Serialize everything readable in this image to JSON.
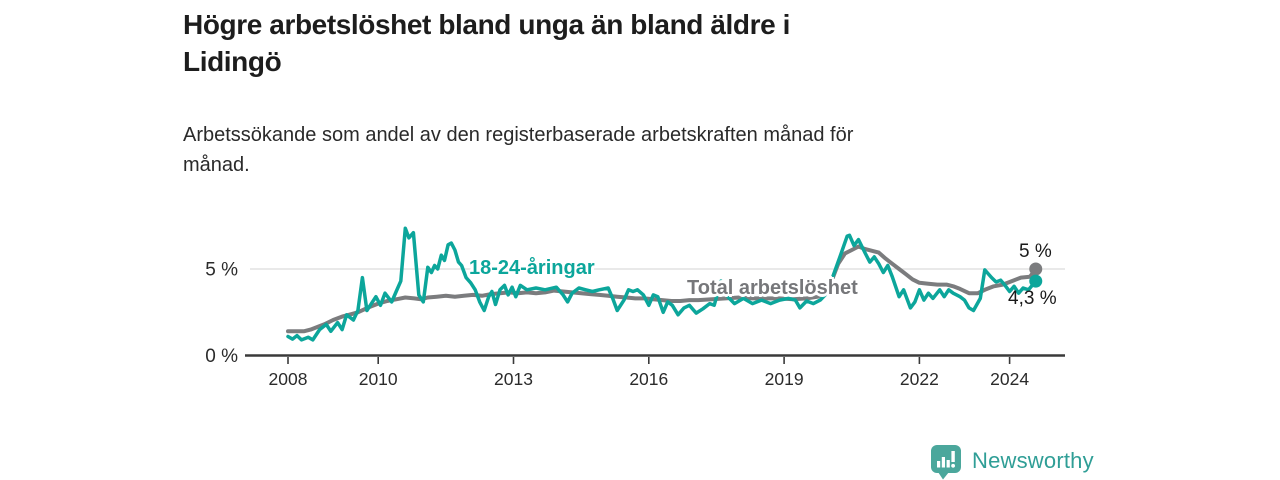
{
  "footer": {
    "brand": "Newsworthy"
  },
  "colors": {
    "accent_teal": "#0ca69b",
    "line_gray": "#7b7c7e",
    "axis": "#3a3a3a",
    "tick_label": "#2b2b2b",
    "grid": "#dcdcdc",
    "logo_teal": "#4ba79c",
    "logo_text_teal": "#2f9e96"
  },
  "chart_data": {
    "type": "line",
    "title": "Högre arbetslöshet bland unga än bland äldre i\nLidingö",
    "subtitle": "Arbetssökande som andel av den registerbaserade arbetskraften månad för\nmånad.",
    "xlabel": "",
    "ylabel": "",
    "unit": "%",
    "grid": "horizontal gridline at 5 % only",
    "legend_position": "inline labels on lines",
    "x_axis": {
      "ticks": [
        2008,
        2010,
        2013,
        2016,
        2019,
        2022,
        2024
      ],
      "range": [
        2007.1,
        2025.4
      ]
    },
    "y_axis": {
      "ticks": [
        {
          "value": 0,
          "label": "0 %"
        },
        {
          "value": 5,
          "label": "5 %"
        }
      ],
      "range": [
        0,
        8.1
      ]
    },
    "series": [
      {
        "name": "Total arbetslöshet",
        "color": "#7b7c7e",
        "end_label": "5 %",
        "end_value": 5.0,
        "points": [
          [
            2008.0,
            1.4
          ],
          [
            2008.2,
            1.4
          ],
          [
            2008.35,
            1.4
          ],
          [
            2008.5,
            1.5
          ],
          [
            2008.65,
            1.65
          ],
          [
            2008.8,
            1.8
          ],
          [
            2009.0,
            2.05
          ],
          [
            2009.2,
            2.25
          ],
          [
            2009.35,
            2.35
          ],
          [
            2009.55,
            2.5
          ],
          [
            2009.8,
            2.8
          ],
          [
            2010.0,
            3.0
          ],
          [
            2010.2,
            3.15
          ],
          [
            2010.4,
            3.25
          ],
          [
            2010.6,
            3.35
          ],
          [
            2010.8,
            3.3
          ],
          [
            2010.95,
            3.25
          ],
          [
            2011.1,
            3.35
          ],
          [
            2011.3,
            3.4
          ],
          [
            2011.5,
            3.45
          ],
          [
            2011.7,
            3.4
          ],
          [
            2011.9,
            3.45
          ],
          [
            2012.1,
            3.5
          ],
          [
            2012.3,
            3.45
          ],
          [
            2012.5,
            3.55
          ],
          [
            2012.7,
            3.6
          ],
          [
            2012.9,
            3.65
          ],
          [
            2013.1,
            3.6
          ],
          [
            2013.3,
            3.65
          ],
          [
            2013.5,
            3.6
          ],
          [
            2013.7,
            3.65
          ],
          [
            2013.9,
            3.75
          ],
          [
            2014.1,
            3.7
          ],
          [
            2014.3,
            3.65
          ],
          [
            2014.5,
            3.6
          ],
          [
            2014.7,
            3.55
          ],
          [
            2014.9,
            3.5
          ],
          [
            2015.1,
            3.45
          ],
          [
            2015.3,
            3.4
          ],
          [
            2015.5,
            3.35
          ],
          [
            2015.7,
            3.3
          ],
          [
            2015.9,
            3.3
          ],
          [
            2016.1,
            3.25
          ],
          [
            2016.3,
            3.2
          ],
          [
            2016.5,
            3.15
          ],
          [
            2016.7,
            3.15
          ],
          [
            2016.9,
            3.2
          ],
          [
            2017.1,
            3.2
          ],
          [
            2017.4,
            3.25
          ],
          [
            2017.7,
            3.3
          ],
          [
            2018.0,
            3.35
          ],
          [
            2018.3,
            3.3
          ],
          [
            2018.6,
            3.3
          ],
          [
            2018.9,
            3.3
          ],
          [
            2019.2,
            3.25
          ],
          [
            2019.5,
            3.3
          ],
          [
            2019.75,
            3.4
          ],
          [
            2019.9,
            3.6
          ],
          [
            2020.05,
            4.3
          ],
          [
            2020.2,
            5.3
          ],
          [
            2020.35,
            5.9
          ],
          [
            2020.5,
            6.1
          ],
          [
            2020.65,
            6.3
          ],
          [
            2020.8,
            6.15
          ],
          [
            2020.95,
            6.05
          ],
          [
            2021.1,
            5.95
          ],
          [
            2021.25,
            5.6
          ],
          [
            2021.4,
            5.3
          ],
          [
            2021.55,
            5.0
          ],
          [
            2021.7,
            4.7
          ],
          [
            2021.85,
            4.4
          ],
          [
            2022.0,
            4.2
          ],
          [
            2022.2,
            4.15
          ],
          [
            2022.4,
            4.1
          ],
          [
            2022.6,
            4.1
          ],
          [
            2022.75,
            4.0
          ],
          [
            2022.9,
            3.85
          ],
          [
            2023.1,
            3.6
          ],
          [
            2023.3,
            3.6
          ],
          [
            2023.45,
            3.8
          ],
          [
            2023.65,
            4.0
          ],
          [
            2023.85,
            4.1
          ],
          [
            2024.05,
            4.3
          ],
          [
            2024.25,
            4.5
          ],
          [
            2024.45,
            4.55
          ],
          [
            2024.58,
            5.0
          ]
        ]
      },
      {
        "name": "18-24-åringar",
        "color": "#0ca69b",
        "end_label": "4,3 %",
        "end_value": 4.3,
        "points": [
          [
            2008.0,
            1.1
          ],
          [
            2008.1,
            0.95
          ],
          [
            2008.2,
            1.15
          ],
          [
            2008.3,
            0.9
          ],
          [
            2008.45,
            1.05
          ],
          [
            2008.55,
            0.9
          ],
          [
            2008.7,
            1.5
          ],
          [
            2008.85,
            1.8
          ],
          [
            2008.95,
            1.4
          ],
          [
            2009.1,
            1.9
          ],
          [
            2009.2,
            1.5
          ],
          [
            2009.3,
            2.35
          ],
          [
            2009.45,
            2.05
          ],
          [
            2009.55,
            2.6
          ],
          [
            2009.65,
            4.5
          ],
          [
            2009.75,
            2.6
          ],
          [
            2009.85,
            3.0
          ],
          [
            2009.95,
            3.4
          ],
          [
            2010.05,
            2.9
          ],
          [
            2010.15,
            3.6
          ],
          [
            2010.3,
            3.1
          ],
          [
            2010.4,
            3.7
          ],
          [
            2010.5,
            4.3
          ],
          [
            2010.6,
            7.35
          ],
          [
            2010.68,
            6.8
          ],
          [
            2010.78,
            7.1
          ],
          [
            2010.9,
            3.5
          ],
          [
            2011.0,
            3.1
          ],
          [
            2011.1,
            5.1
          ],
          [
            2011.18,
            4.8
          ],
          [
            2011.25,
            5.2
          ],
          [
            2011.32,
            5.0
          ],
          [
            2011.4,
            5.8
          ],
          [
            2011.47,
            5.5
          ],
          [
            2011.55,
            6.4
          ],
          [
            2011.62,
            6.5
          ],
          [
            2011.7,
            6.1
          ],
          [
            2011.78,
            5.4
          ],
          [
            2011.85,
            5.2
          ],
          [
            2011.95,
            4.5
          ],
          [
            2012.05,
            4.2
          ],
          [
            2012.15,
            3.8
          ],
          [
            2012.25,
            3.1
          ],
          [
            2012.35,
            2.6
          ],
          [
            2012.45,
            3.4
          ],
          [
            2012.52,
            3.7
          ],
          [
            2012.6,
            2.95
          ],
          [
            2012.7,
            3.8
          ],
          [
            2012.8,
            4.05
          ],
          [
            2012.88,
            3.5
          ],
          [
            2012.97,
            3.95
          ],
          [
            2013.05,
            3.4
          ],
          [
            2013.15,
            4.05
          ],
          [
            2013.3,
            3.8
          ],
          [
            2013.5,
            3.9
          ],
          [
            2013.7,
            3.8
          ],
          [
            2013.95,
            3.95
          ],
          [
            2014.1,
            3.5
          ],
          [
            2014.2,
            3.1
          ],
          [
            2014.3,
            3.6
          ],
          [
            2014.45,
            3.9
          ],
          [
            2014.6,
            3.8
          ],
          [
            2014.75,
            3.7
          ],
          [
            2014.9,
            3.8
          ],
          [
            2015.1,
            3.9
          ],
          [
            2015.2,
            3.3
          ],
          [
            2015.3,
            2.6
          ],
          [
            2015.45,
            3.2
          ],
          [
            2015.55,
            3.8
          ],
          [
            2015.65,
            3.7
          ],
          [
            2015.75,
            3.8
          ],
          [
            2015.88,
            3.5
          ],
          [
            2016.0,
            2.9
          ],
          [
            2016.1,
            3.5
          ],
          [
            2016.2,
            3.4
          ],
          [
            2016.32,
            2.5
          ],
          [
            2016.42,
            3.1
          ],
          [
            2016.52,
            2.9
          ],
          [
            2016.65,
            2.35
          ],
          [
            2016.78,
            2.75
          ],
          [
            2016.9,
            2.9
          ],
          [
            2017.05,
            2.45
          ],
          [
            2017.2,
            2.7
          ],
          [
            2017.35,
            3.0
          ],
          [
            2017.45,
            2.9
          ],
          [
            2017.6,
            4.3
          ],
          [
            2017.75,
            3.4
          ],
          [
            2017.9,
            3.0
          ],
          [
            2018.1,
            3.3
          ],
          [
            2018.3,
            3.0
          ],
          [
            2018.5,
            3.2
          ],
          [
            2018.7,
            3.0
          ],
          [
            2018.9,
            3.2
          ],
          [
            2019.1,
            3.3
          ],
          [
            2019.25,
            3.2
          ],
          [
            2019.35,
            2.75
          ],
          [
            2019.5,
            3.15
          ],
          [
            2019.65,
            3.0
          ],
          [
            2019.8,
            3.2
          ],
          [
            2019.95,
            3.6
          ],
          [
            2020.1,
            4.7
          ],
          [
            2020.25,
            5.8
          ],
          [
            2020.4,
            6.9
          ],
          [
            2020.45,
            6.95
          ],
          [
            2020.55,
            6.35
          ],
          [
            2020.65,
            6.7
          ],
          [
            2020.8,
            5.9
          ],
          [
            2020.9,
            5.4
          ],
          [
            2021.0,
            5.7
          ],
          [
            2021.1,
            5.3
          ],
          [
            2021.2,
            4.8
          ],
          [
            2021.3,
            5.2
          ],
          [
            2021.4,
            4.55
          ],
          [
            2021.55,
            3.4
          ],
          [
            2021.65,
            3.8
          ],
          [
            2021.8,
            2.75
          ],
          [
            2021.9,
            3.1
          ],
          [
            2022.0,
            3.8
          ],
          [
            2022.1,
            3.2
          ],
          [
            2022.2,
            3.6
          ],
          [
            2022.3,
            3.3
          ],
          [
            2022.45,
            3.8
          ],
          [
            2022.55,
            3.4
          ],
          [
            2022.65,
            3.8
          ],
          [
            2022.75,
            3.6
          ],
          [
            2022.9,
            3.4
          ],
          [
            2023.0,
            3.2
          ],
          [
            2023.1,
            2.75
          ],
          [
            2023.2,
            2.6
          ],
          [
            2023.35,
            3.3
          ],
          [
            2023.45,
            4.95
          ],
          [
            2023.6,
            4.5
          ],
          [
            2023.7,
            4.25
          ],
          [
            2023.8,
            4.35
          ],
          [
            2023.9,
            4.05
          ],
          [
            2024.0,
            3.7
          ],
          [
            2024.1,
            4.0
          ],
          [
            2024.2,
            3.6
          ],
          [
            2024.3,
            3.9
          ],
          [
            2024.42,
            3.8
          ],
          [
            2024.58,
            4.3
          ]
        ]
      }
    ]
  }
}
